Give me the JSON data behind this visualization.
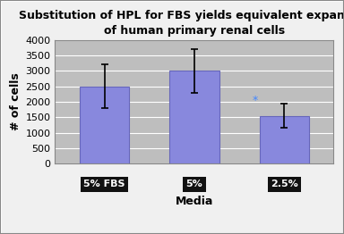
{
  "categories": [
    "5% FBS",
    "5%",
    "2.5%"
  ],
  "values": [
    2500,
    3000,
    1550
  ],
  "errors": [
    700,
    700,
    400
  ],
  "bar_color": "#8888dd",
  "bar_edgecolor": "#6666bb",
  "title_line1": "Substitution of HPL for FBS yields equivalent expansion",
  "title_line2": "of human primary renal cells",
  "ylabel": "# of cells",
  "xlabel": "Media",
  "ylim": [
    0,
    4000
  ],
  "yticks": [
    0,
    500,
    1000,
    1500,
    2000,
    2500,
    3000,
    3500,
    4000
  ],
  "plot_bg": "#bebebe",
  "fig_bg": "#f0f0f0",
  "outer_border_color": "#888888",
  "asterisk_text": "*",
  "asterisk_color": "#4488ff",
  "label_bg": "#111111",
  "label_fg": "#ffffff",
  "title_fontsize": 9.0,
  "axis_label_fontsize": 9,
  "tick_fontsize": 8,
  "xlabel_fontsize": 9,
  "bar_width": 0.55,
  "error_capsize": 3,
  "error_linewidth": 1.2,
  "grid_color": "#ffffff",
  "grid_linewidth": 0.8
}
